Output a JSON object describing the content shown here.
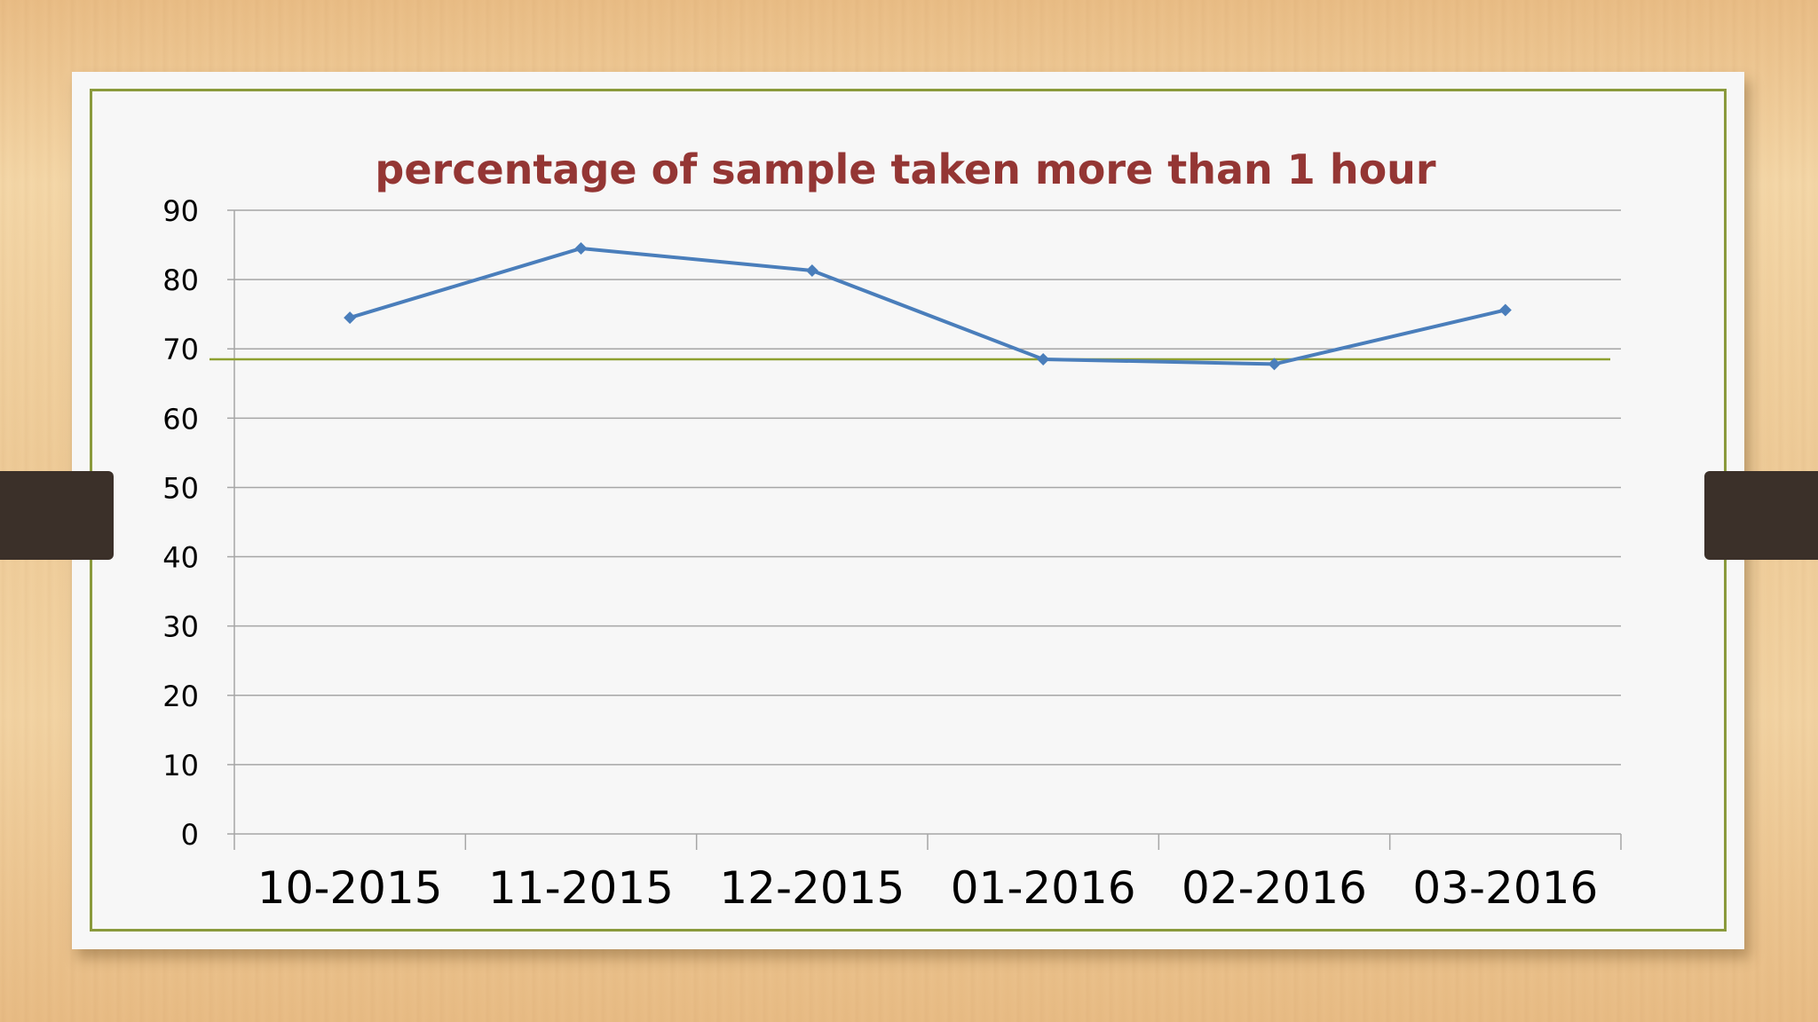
{
  "chart_data": {
    "type": "line",
    "title": "percentage of sample taken more than 1 hour",
    "xlabel": "",
    "ylabel": "",
    "categories": [
      "10-2015",
      "11-2015",
      "12-2015",
      "01-2016",
      "02-2016",
      "03-2016"
    ],
    "series": [
      {
        "values": [
          74.5,
          84.5,
          81.3,
          68.5,
          67.8,
          75.6
        ],
        "color": "#4a7ebb",
        "marker": "diamond"
      }
    ],
    "reference_line": {
      "value": 68.5,
      "color": "#8ea030"
    },
    "ylim": [
      0,
      90
    ],
    "yticks": [
      0,
      10,
      20,
      30,
      40,
      50,
      60,
      70,
      80,
      90
    ],
    "grid": true,
    "legend": "none"
  },
  "colors": {
    "title": "#943634",
    "frame": "#8a9a3c",
    "gridline": "#a6a6a6",
    "axis_text": "#000000"
  }
}
